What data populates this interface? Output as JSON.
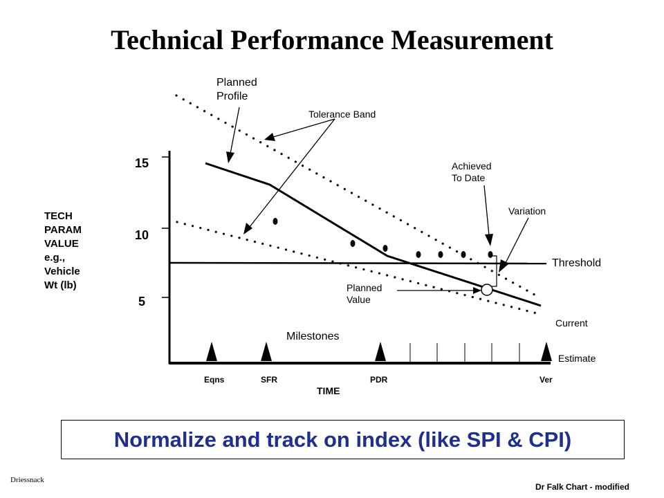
{
  "title": "Technical Performance Measurement",
  "y_axis": {
    "label_lines": [
      "TECH",
      "PARAM",
      "VALUE",
      "e.g.,",
      "Vehicle",
      "Wt (lb)"
    ],
    "ticks": [
      "15",
      "10",
      "5"
    ]
  },
  "x_axis": {
    "label": "TIME"
  },
  "milestones": {
    "label": "Milestones",
    "names": [
      "Eqns",
      "SFR",
      "PDR",
      "Ver"
    ]
  },
  "annotations": {
    "planned_profile": [
      "Planned",
      "Profile"
    ],
    "tolerance_band": "Tolerance Band",
    "achieved_to_date": [
      "Achieved",
      "To Date"
    ],
    "variation": "Variation",
    "threshold": "Threshold",
    "planned_value": [
      "Planned",
      "Value"
    ],
    "current_estimate": [
      "Current",
      " Estimate"
    ]
  },
  "footer": "Normalize and track on index (like SPI & CPI)",
  "credit_left": "Driessnack",
  "credit_right": "Dr Falk Chart - modified"
}
